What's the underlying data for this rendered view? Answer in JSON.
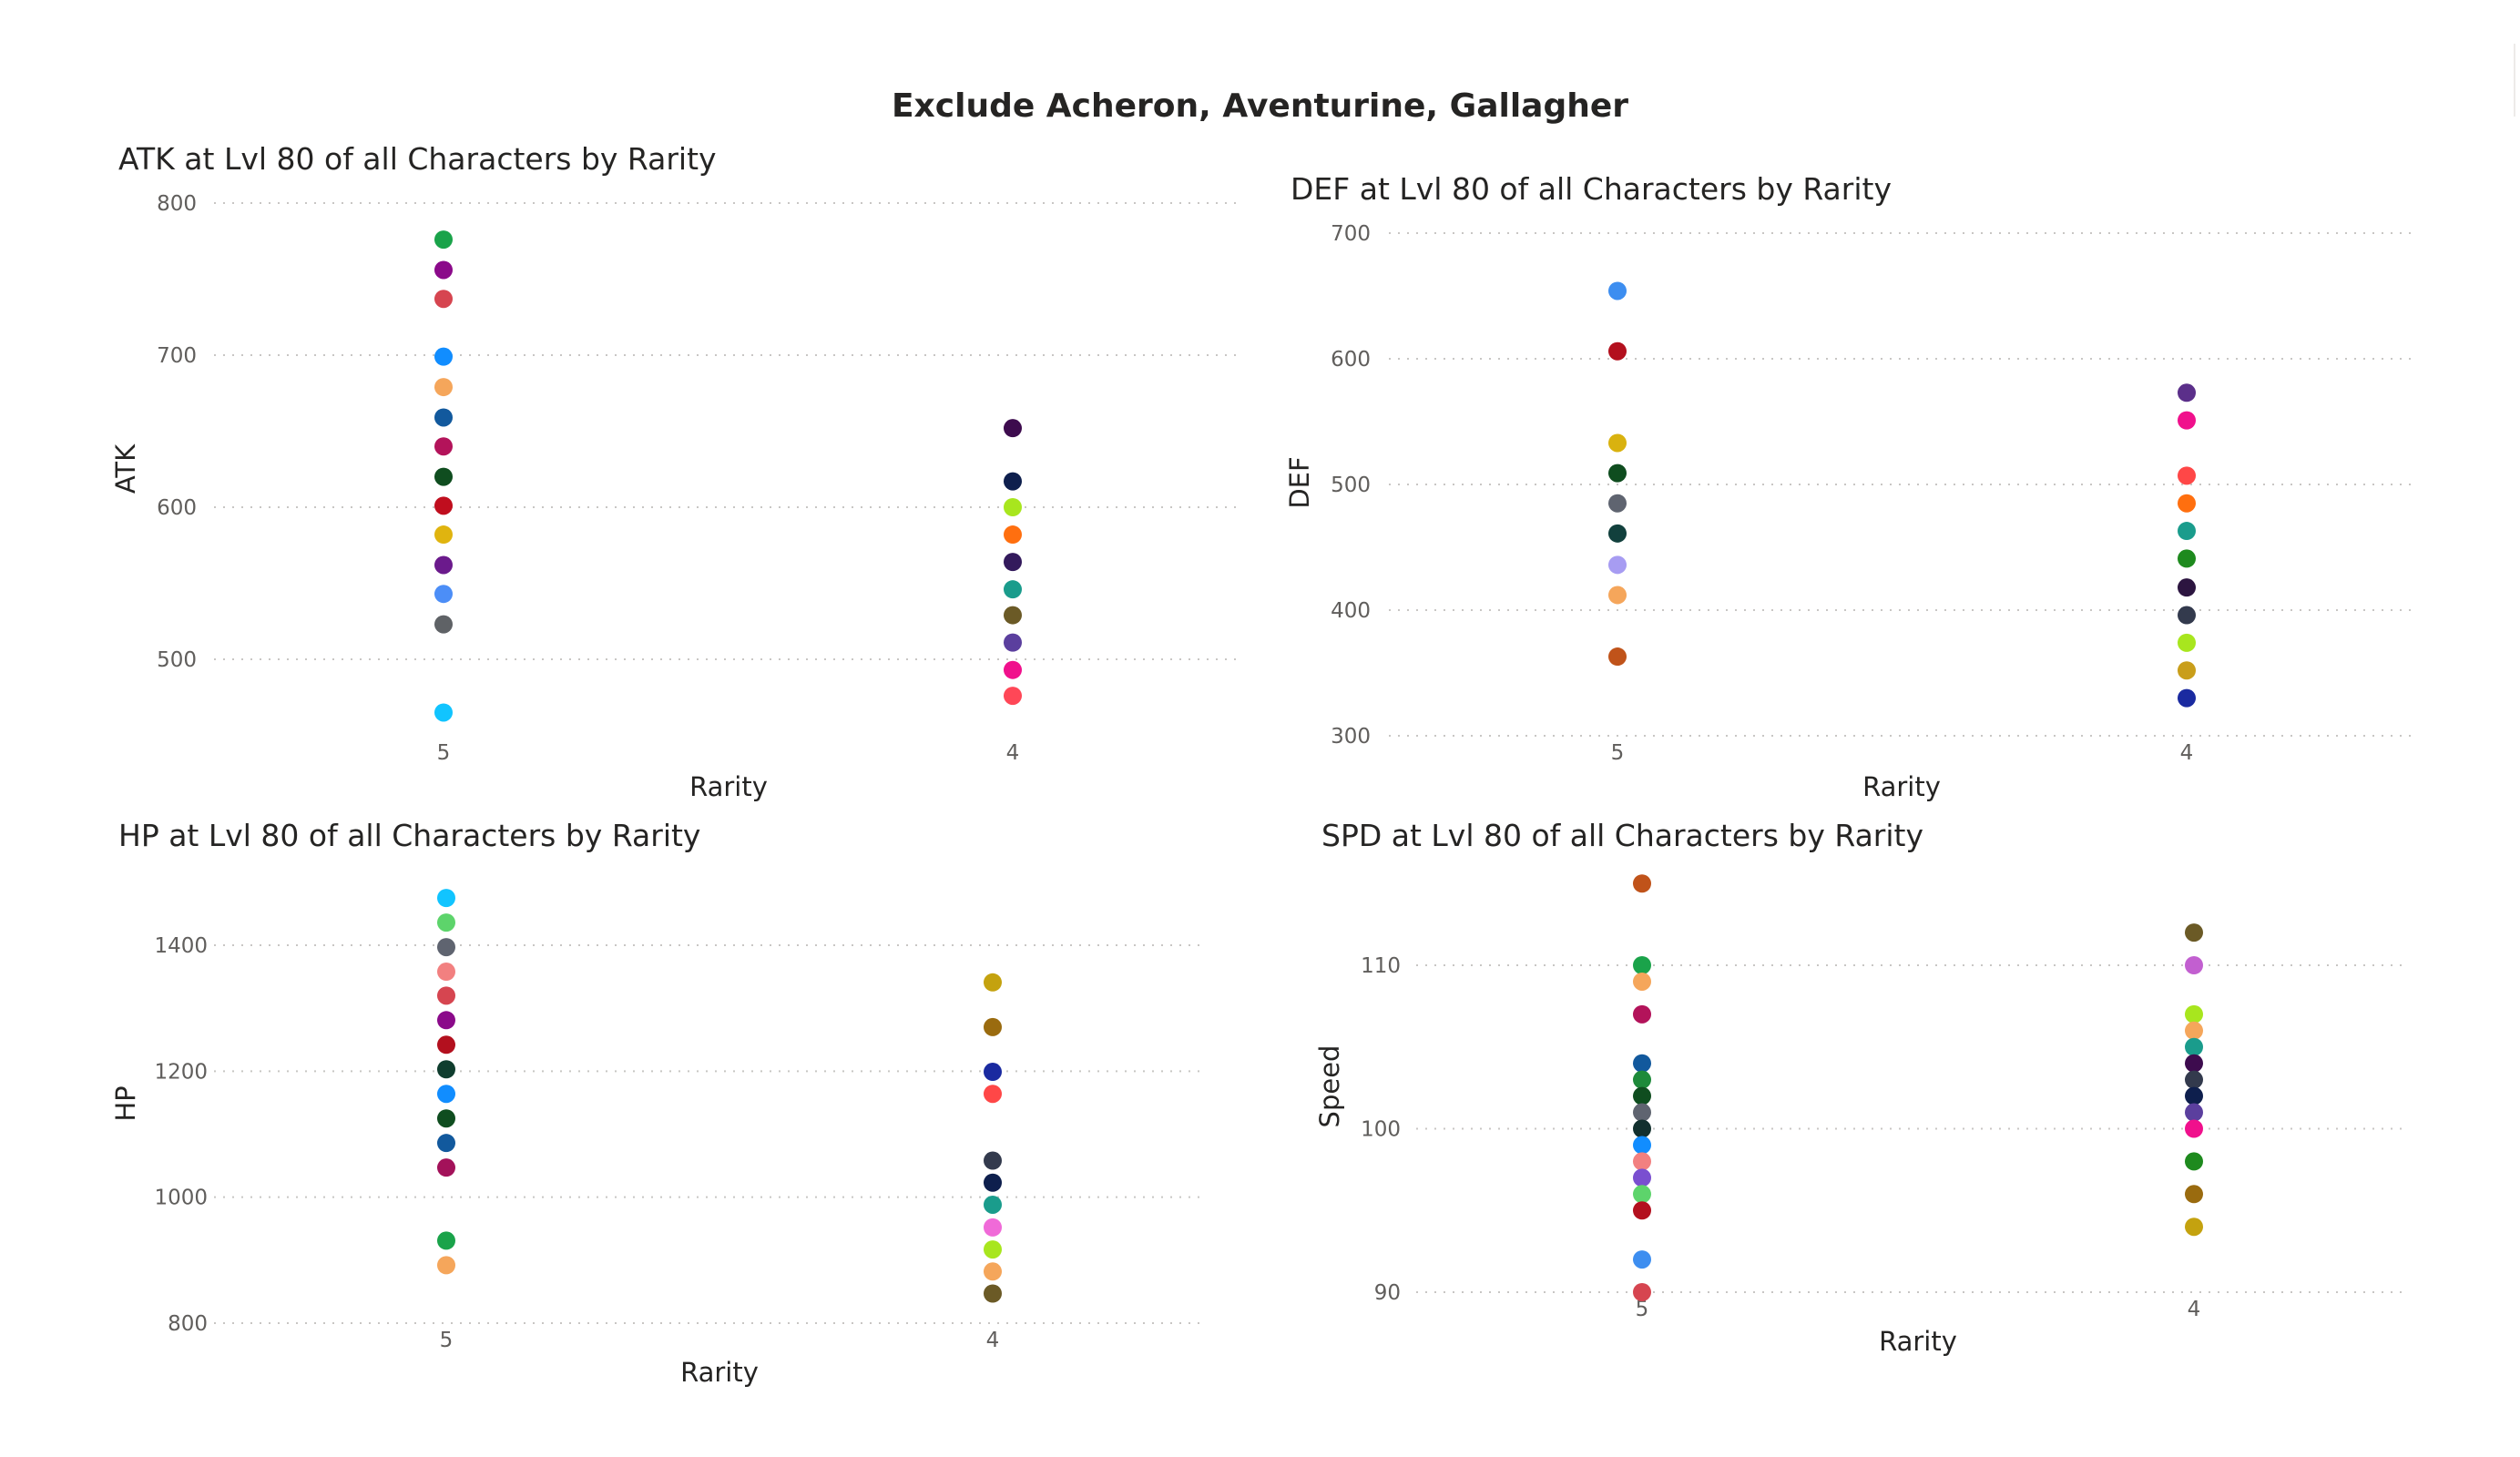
{
  "page": {
    "title": "Exclude Acheron, Aventurine, Gallagher"
  },
  "chart_data": [
    {
      "id": "atk",
      "type": "scatter",
      "title": "ATK at Lvl 80 of all Characters by Rarity",
      "xlabel": "Rarity",
      "ylabel": "ATK",
      "categories": [
        "5",
        "4"
      ],
      "ylim": [
        450,
        800
      ],
      "yticks": [
        500,
        600,
        700,
        800
      ],
      "grid": true,
      "points": [
        {
          "x": "5",
          "y": 776,
          "color": "#1aa34a"
        },
        {
          "x": "5",
          "y": 756,
          "color": "#8b0a8a"
        },
        {
          "x": "5",
          "y": 737,
          "color": "#d64550"
        },
        {
          "x": "5",
          "y": 699,
          "color": "#118dff"
        },
        {
          "x": "5",
          "y": 679,
          "color": "#f5a65b"
        },
        {
          "x": "5",
          "y": 659,
          "color": "#12599d"
        },
        {
          "x": "5",
          "y": 640,
          "color": "#b3135a"
        },
        {
          "x": "5",
          "y": 620,
          "color": "#0f4d1f"
        },
        {
          "x": "5",
          "y": 601,
          "color": "#c00e1e"
        },
        {
          "x": "5",
          "y": 582,
          "color": "#e0b40f"
        },
        {
          "x": "5",
          "y": 562,
          "color": "#6b1a8c"
        },
        {
          "x": "5",
          "y": 543,
          "color": "#4c8ef7"
        },
        {
          "x": "5",
          "y": 523,
          "color": "#5f6266"
        },
        {
          "x": "5",
          "y": 465,
          "color": "#11c4ff"
        },
        {
          "x": "4",
          "y": 652,
          "color": "#3d0b4e"
        },
        {
          "x": "4",
          "y": 617,
          "color": "#0e1f4d"
        },
        {
          "x": "4",
          "y": 600,
          "color": "#a8e61e"
        },
        {
          "x": "4",
          "y": 582,
          "color": "#ff6f0f"
        },
        {
          "x": "4",
          "y": 564,
          "color": "#331a5c"
        },
        {
          "x": "4",
          "y": 546,
          "color": "#1a9c8c"
        },
        {
          "x": "4",
          "y": 529,
          "color": "#6b5a26"
        },
        {
          "x": "4",
          "y": 511,
          "color": "#5b3f9e"
        },
        {
          "x": "4",
          "y": 493,
          "color": "#f0108c"
        },
        {
          "x": "4",
          "y": 476,
          "color": "#ff4757"
        }
      ]
    },
    {
      "id": "def",
      "type": "scatter",
      "title": "DEF at Lvl 80 of all Characters by Rarity",
      "xlabel": "Rarity",
      "ylabel": "DEF",
      "categories": [
        "5",
        "4"
      ],
      "ylim": [
        300,
        700
      ],
      "yticks": [
        300,
        400,
        500,
        600,
        700
      ],
      "grid": true,
      "points": [
        {
          "x": "5",
          "y": 654,
          "color": "#3d8ef0"
        },
        {
          "x": "5",
          "y": 606,
          "color": "#b3101e"
        },
        {
          "x": "5",
          "y": 533,
          "color": "#d9b20f"
        },
        {
          "x": "5",
          "y": 509,
          "color": "#0f4d1f"
        },
        {
          "x": "5",
          "y": 485,
          "color": "#5f6470"
        },
        {
          "x": "5",
          "y": 461,
          "color": "#12403d"
        },
        {
          "x": "5",
          "y": 436,
          "color": "#a79cf2"
        },
        {
          "x": "5",
          "y": 412,
          "color": "#f5a65b"
        },
        {
          "x": "5",
          "y": 363,
          "color": "#c0531a"
        },
        {
          "x": "4",
          "y": 573,
          "color": "#5b2f8a"
        },
        {
          "x": "4",
          "y": 551,
          "color": "#f0108c"
        },
        {
          "x": "4",
          "y": 507,
          "color": "#ff4747"
        },
        {
          "x": "4",
          "y": 485,
          "color": "#ff6f0f"
        },
        {
          "x": "4",
          "y": 463,
          "color": "#1a9c8c"
        },
        {
          "x": "4",
          "y": 441,
          "color": "#1e8a1e"
        },
        {
          "x": "4",
          "y": 418,
          "color": "#2c1540"
        },
        {
          "x": "4",
          "y": 396,
          "color": "#333a4d"
        },
        {
          "x": "4",
          "y": 374,
          "color": "#a8e61e"
        },
        {
          "x": "4",
          "y": 352,
          "color": "#c99e1a"
        },
        {
          "x": "4",
          "y": 330,
          "color": "#1a2aa0"
        }
      ]
    },
    {
      "id": "hp",
      "type": "scatter",
      "title": "HP at Lvl 80 of all Characters by Rarity",
      "xlabel": "Rarity",
      "ylabel": "HP",
      "categories": [
        "5",
        "4"
      ],
      "ylim": [
        800,
        1500
      ],
      "yticks": [
        800,
        1000,
        1200,
        1400
      ],
      "grid": true,
      "points": [
        {
          "x": "5",
          "y": 1475,
          "color": "#11c4ff"
        },
        {
          "x": "5",
          "y": 1436,
          "color": "#5dd46b"
        },
        {
          "x": "5",
          "y": 1397,
          "color": "#5f6470"
        },
        {
          "x": "5",
          "y": 1358,
          "color": "#f28080"
        },
        {
          "x": "5",
          "y": 1320,
          "color": "#d64550"
        },
        {
          "x": "5",
          "y": 1281,
          "color": "#8b0a8a"
        },
        {
          "x": "5",
          "y": 1242,
          "color": "#b3101e"
        },
        {
          "x": "5",
          "y": 1203,
          "color": "#0f3d2e"
        },
        {
          "x": "5",
          "y": 1164,
          "color": "#118dff"
        },
        {
          "x": "5",
          "y": 1125,
          "color": "#0f4d1f"
        },
        {
          "x": "5",
          "y": 1086,
          "color": "#12599d"
        },
        {
          "x": "5",
          "y": 1047,
          "color": "#a3125a"
        },
        {
          "x": "5",
          "y": 931,
          "color": "#1aa34a"
        },
        {
          "x": "5",
          "y": 892,
          "color": "#f5a65b"
        },
        {
          "x": "4",
          "y": 1341,
          "color": "#c4a20f"
        },
        {
          "x": "4",
          "y": 1270,
          "color": "#9a6b0f"
        },
        {
          "x": "4",
          "y": 1199,
          "color": "#1a2aa0"
        },
        {
          "x": "4",
          "y": 1164,
          "color": "#ff4747"
        },
        {
          "x": "4",
          "y": 1058,
          "color": "#333a4d"
        },
        {
          "x": "4",
          "y": 1023,
          "color": "#0e1f4d"
        },
        {
          "x": "4",
          "y": 988,
          "color": "#1a9c8c"
        },
        {
          "x": "4",
          "y": 952,
          "color": "#f06ad8"
        },
        {
          "x": "4",
          "y": 917,
          "color": "#a8e61e"
        },
        {
          "x": "4",
          "y": 882,
          "color": "#f5a65b"
        },
        {
          "x": "4",
          "y": 847,
          "color": "#6b5a26"
        }
      ]
    },
    {
      "id": "spd",
      "type": "scatter",
      "title": "SPD at Lvl 80 of all Characters by Rarity",
      "xlabel": "Rarity",
      "ylabel": "Speed",
      "categories": [
        "5",
        "4"
      ],
      "ylim": [
        90,
        115
      ],
      "yticks": [
        90,
        100,
        110
      ],
      "grid": true,
      "points": [
        {
          "x": "5",
          "y": 115,
          "color": "#c0531a"
        },
        {
          "x": "5",
          "y": 110,
          "color": "#1aa34a"
        },
        {
          "x": "5",
          "y": 109,
          "color": "#f5a65b"
        },
        {
          "x": "5",
          "y": 107,
          "color": "#b3135a"
        },
        {
          "x": "5",
          "y": 104,
          "color": "#12599d"
        },
        {
          "x": "5",
          "y": 103,
          "color": "#1e8a3a"
        },
        {
          "x": "5",
          "y": 102,
          "color": "#0f4d1f"
        },
        {
          "x": "5",
          "y": 101,
          "color": "#5f6470"
        },
        {
          "x": "5",
          "y": 100,
          "color": "#12302e"
        },
        {
          "x": "5",
          "y": 99,
          "color": "#118dff"
        },
        {
          "x": "5",
          "y": 98,
          "color": "#f28080"
        },
        {
          "x": "5",
          "y": 97,
          "color": "#7a4fd0"
        },
        {
          "x": "5",
          "y": 96,
          "color": "#5dd46b"
        },
        {
          "x": "5",
          "y": 95,
          "color": "#b3101e"
        },
        {
          "x": "5",
          "y": 92,
          "color": "#3d8ef0"
        },
        {
          "x": "5",
          "y": 90,
          "color": "#d64550"
        },
        {
          "x": "4",
          "y": 112,
          "color": "#6b5a26"
        },
        {
          "x": "4",
          "y": 110,
          "color": "#c25fd0"
        },
        {
          "x": "4",
          "y": 107,
          "color": "#a8e61e"
        },
        {
          "x": "4",
          "y": 106,
          "color": "#f5a65b"
        },
        {
          "x": "4",
          "y": 105,
          "color": "#1a9c8c"
        },
        {
          "x": "4",
          "y": 104,
          "color": "#3d0b4e"
        },
        {
          "x": "4",
          "y": 103,
          "color": "#333a4d"
        },
        {
          "x": "4",
          "y": 102,
          "color": "#0e1f4d"
        },
        {
          "x": "4",
          "y": 101,
          "color": "#5b3f9e"
        },
        {
          "x": "4",
          "y": 100,
          "color": "#f0108c"
        },
        {
          "x": "4",
          "y": 98,
          "color": "#1e8a1e"
        },
        {
          "x": "4",
          "y": 96,
          "color": "#9a6b0f"
        },
        {
          "x": "4",
          "y": 94,
          "color": "#c4a20f"
        }
      ]
    }
  ]
}
